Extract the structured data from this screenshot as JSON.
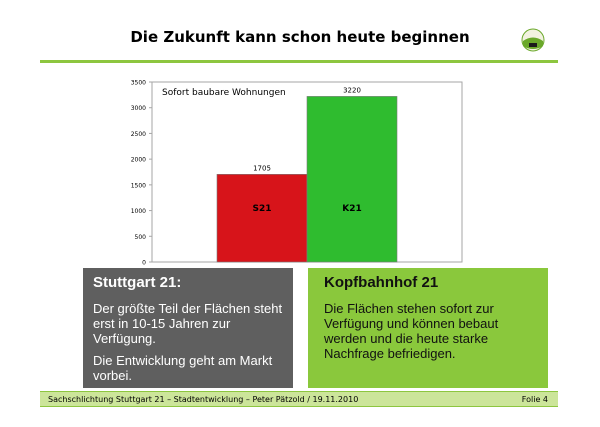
{
  "title": "Die Zukunft kann schon heute beginnen",
  "logo_label": "OBEN BLEIBEN",
  "chart_data": {
    "type": "bar",
    "title": "Sofort baubare Wohnungen",
    "categories": [
      "S21",
      "K21"
    ],
    "values": [
      1705,
      3220
    ],
    "data_labels": [
      "1705",
      "3220"
    ],
    "colors": [
      "#d7141a",
      "#2fbc2f"
    ],
    "ylim": [
      0,
      3500
    ],
    "yticks": [
      0,
      500,
      1000,
      1500,
      2000,
      2500,
      3000,
      3500
    ],
    "grid": false
  },
  "boxes": {
    "left": {
      "heading": "Stuttgart 21:",
      "p1": "Der größte Teil der Flächen steht erst in 10-15 Jahren zur Verfügung.",
      "p2": "Die Entwicklung geht am Markt vorbei."
    },
    "right": {
      "heading": "Kopfbahnhof 21",
      "p1": "Die Flächen stehen sofort zur Verfügung und können bebaut werden und die heute starke Nachfrage befriedigen."
    }
  },
  "footer": {
    "left": "Sachschlichtung Stuttgart 21 – Stadtentwicklung – Peter Pätzold / 19.11.2010",
    "right": "Folie 4"
  }
}
